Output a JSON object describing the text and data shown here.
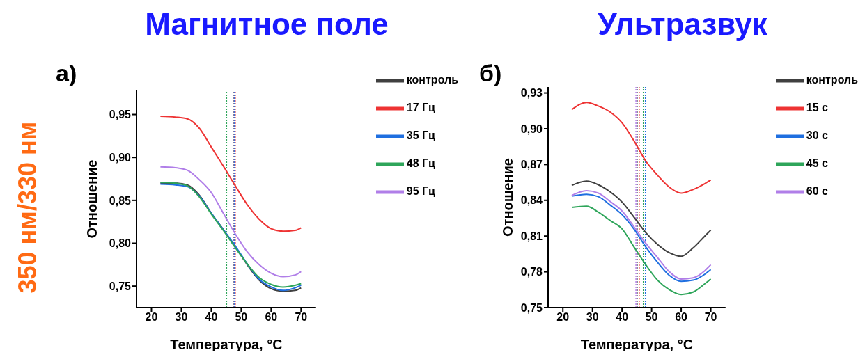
{
  "chart_data": [
    {
      "type": "line",
      "title": "Магнитное поле",
      "xlabel": "Температура, °C",
      "ylabel": "Отношение",
      "annotations": [
        "а)",
        "350 нм/330 нм"
      ],
      "x": [
        23,
        28,
        32,
        36,
        40,
        44,
        48,
        52,
        56,
        60,
        64,
        68,
        70
      ],
      "series": [
        {
          "name": "контроль",
          "color": "#404040",
          "values": [
            0.87,
            0.87,
            0.868,
            0.856,
            0.835,
            0.816,
            0.796,
            0.775,
            0.757,
            0.747,
            0.744,
            0.745,
            0.748
          ]
        },
        {
          "name": "17 Гц",
          "color": "#ee3333",
          "values": [
            0.948,
            0.947,
            0.945,
            0.934,
            0.912,
            0.89,
            0.867,
            0.845,
            0.828,
            0.817,
            0.814,
            0.815,
            0.818
          ]
        },
        {
          "name": "35 Гц",
          "color": "#1f6fe0",
          "values": [
            0.869,
            0.868,
            0.866,
            0.855,
            0.835,
            0.816,
            0.797,
            0.776,
            0.758,
            0.749,
            0.745,
            0.748,
            0.751
          ]
        },
        {
          "name": "48 Гц",
          "color": "#2ea55a",
          "values": [
            0.871,
            0.87,
            0.867,
            0.854,
            0.834,
            0.815,
            0.795,
            0.776,
            0.76,
            0.752,
            0.749,
            0.751,
            0.753
          ]
        },
        {
          "name": "95 Гц",
          "color": "#b07ee8",
          "values": [
            0.889,
            0.888,
            0.885,
            0.874,
            0.859,
            0.835,
            0.811,
            0.79,
            0.775,
            0.765,
            0.761,
            0.763,
            0.767
          ]
        }
      ],
      "xlim": [
        15,
        75
      ],
      "xticks": [
        20,
        30,
        40,
        50,
        60,
        70
      ],
      "ylim": [
        0.725,
        0.978
      ],
      "yticks": [
        {
          "value": 0.75,
          "label": "0,75"
        },
        {
          "value": 0.8,
          "label": "0,80"
        },
        {
          "value": 0.85,
          "label": "0,85"
        },
        {
          "value": 0.9,
          "label": "0,90"
        },
        {
          "value": 0.95,
          "label": "0,95"
        }
      ],
      "ref_lines": [
        {
          "axis": "x",
          "value": 45.1,
          "color": "#2ea55a",
          "line_style": "dotted"
        },
        {
          "axis": "x",
          "value": 47.6,
          "color": "#404040",
          "line_style": "dotted"
        },
        {
          "axis": "x",
          "value": 47.7,
          "color": "#b07ee8",
          "line_style": "dotted"
        },
        {
          "axis": "x",
          "value": 47.8,
          "color": "#1f6fe0",
          "line_style": "dotted"
        },
        {
          "axis": "x",
          "value": 48.0,
          "color": "#ee3333",
          "line_style": "dotted"
        }
      ],
      "grid": false,
      "legend": "top right"
    },
    {
      "type": "line",
      "title": "Ультразвук",
      "xlabel": "Температура, °C",
      "ylabel": "Отношение",
      "annotations": [
        "б)"
      ],
      "x": [
        23,
        28,
        32,
        36,
        40,
        44,
        48,
        52,
        56,
        60,
        64,
        68,
        70
      ],
      "series": [
        {
          "name": "контроль",
          "color": "#404040",
          "values": [
            0.8525,
            0.856,
            0.853,
            0.847,
            0.8385,
            0.826,
            0.813,
            0.803,
            0.796,
            0.793,
            0.8,
            0.81,
            0.815
          ]
        },
        {
          "name": "15 с",
          "color": "#ee3333",
          "values": [
            0.916,
            0.922,
            0.919,
            0.914,
            0.905,
            0.89,
            0.873,
            0.861,
            0.851,
            0.846,
            0.849,
            0.854,
            0.857
          ]
        },
        {
          "name": "30 с",
          "color": "#1f6fe0",
          "values": [
            0.8435,
            0.845,
            0.843,
            0.836,
            0.828,
            0.816,
            0.801,
            0.788,
            0.777,
            0.772,
            0.773,
            0.778,
            0.782
          ]
        },
        {
          "name": "45 с",
          "color": "#2ea55a",
          "values": [
            0.834,
            0.835,
            0.83,
            0.823,
            0.816,
            0.801,
            0.786,
            0.773,
            0.765,
            0.761,
            0.763,
            0.77,
            0.774
          ]
        },
        {
          "name": "60 с",
          "color": "#b07ee8",
          "values": [
            0.844,
            0.848,
            0.846,
            0.839,
            0.831,
            0.818,
            0.804,
            0.792,
            0.78,
            0.774,
            0.775,
            0.781,
            0.786
          ]
        }
      ],
      "xlim": [
        15,
        75
      ],
      "xticks": [
        20,
        30,
        40,
        50,
        60,
        70
      ],
      "ylim": [
        0.75,
        0.935
      ],
      "yticks": [
        {
          "value": 0.75,
          "label": "0,75"
        },
        {
          "value": 0.78,
          "label": "0,78"
        },
        {
          "value": 0.81,
          "label": "0,81"
        },
        {
          "value": 0.84,
          "label": "0,84"
        },
        {
          "value": 0.87,
          "label": "0,87"
        },
        {
          "value": 0.9,
          "label": "0,90"
        },
        {
          "value": 0.93,
          "label": "0,93"
        }
      ],
      "ref_lines": [
        {
          "axis": "x",
          "value": 44.7,
          "color": "#b07ee8",
          "line_style": "dotted"
        },
        {
          "axis": "x",
          "value": 45.1,
          "color": "#404040",
          "line_style": "dotted"
        },
        {
          "axis": "x",
          "value": 45.8,
          "color": "#ee3333",
          "line_style": "dotted"
        },
        {
          "axis": "x",
          "value": 47.2,
          "color": "#2ea55a",
          "line_style": "dotted"
        },
        {
          "axis": "x",
          "value": 47.9,
          "color": "#1f6fe0",
          "line_style": "dotted"
        }
      ],
      "grid": false,
      "legend": "top right"
    }
  ]
}
